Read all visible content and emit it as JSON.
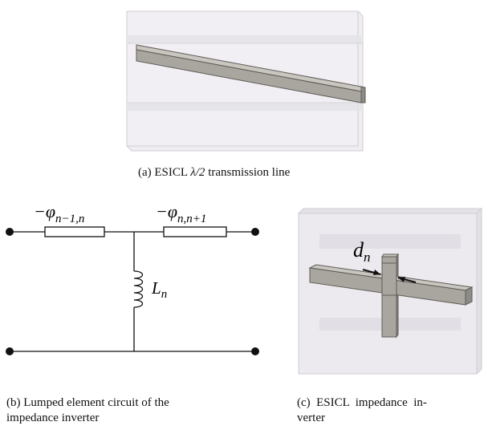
{
  "figure": {
    "panel_a": {
      "caption_prefix": "(a) ESICL ",
      "caption_math": "λ/2",
      "caption_suffix": " transmission line"
    },
    "panel_b": {
      "label_left": "−φ",
      "label_left_sub": "n−1,n",
      "label_right": "−φ",
      "label_right_sub": "n,n+1",
      "inductor_label": "L",
      "inductor_sub": "n",
      "caption_line1": "(b) Lumped element circuit of the",
      "caption_line2": "impedance inverter"
    },
    "panel_c": {
      "dim_label": "d",
      "dim_sub": "n",
      "caption_line1": "(c)  ESICL  impedance  in-",
      "caption_line2": "verter"
    }
  },
  "colors": {
    "box_fill": "#eceaee",
    "box_edge": "#c8c6cc",
    "bar_fill": "#a9a6a0",
    "bar_top": "#c9c6c0",
    "bar_edge": "#5e5b57",
    "ink": "#111111"
  }
}
